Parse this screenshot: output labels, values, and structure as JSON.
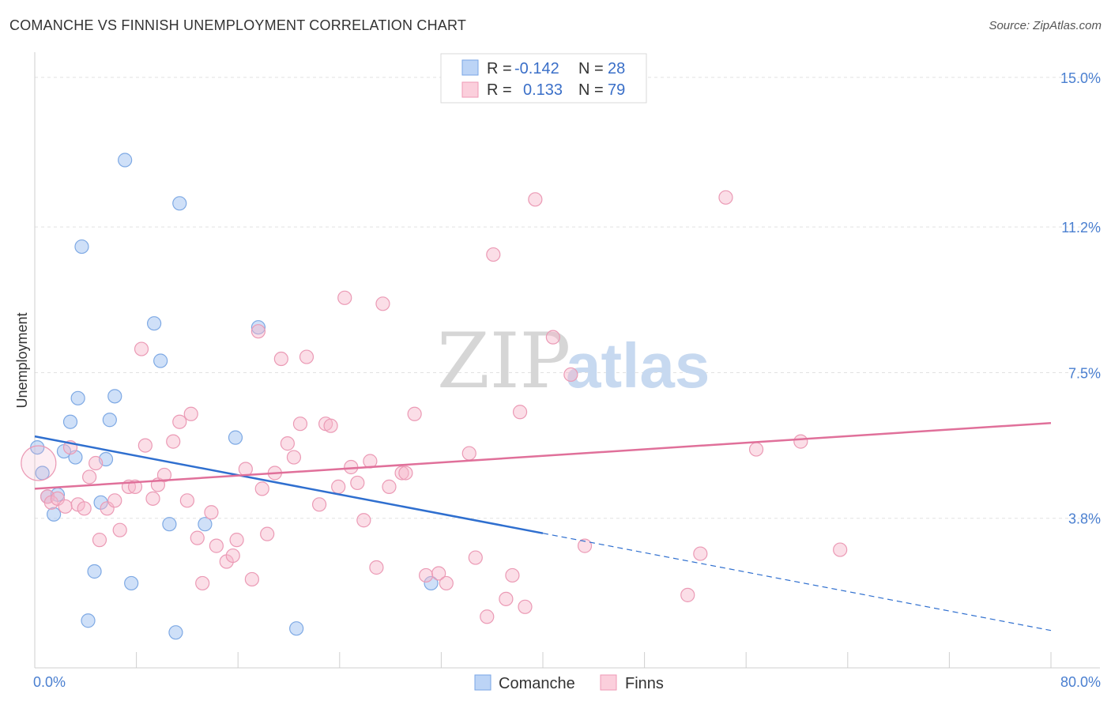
{
  "chart_data": {
    "type": "scatter",
    "title": "COMANCHE VS FINNISH UNEMPLOYMENT CORRELATION CHART",
    "source": "Source: ZipAtlas.com",
    "xlabel": "",
    "ylabel": "Unemployment",
    "xlim": [
      0,
      80
    ],
    "ylim": [
      0,
      15.4
    ],
    "x_tick_labels": {
      "min": "0.0%",
      "max": "80.0%"
    },
    "y_ticks": [
      {
        "value": 3.8,
        "label": "3.8%"
      },
      {
        "value": 7.5,
        "label": "7.5%"
      },
      {
        "value": 11.2,
        "label": "11.2%"
      },
      {
        "value": 15.0,
        "label": "15.0%"
      }
    ],
    "legend": {
      "placement": "top-center",
      "rows": [
        {
          "r_label": "R =",
          "r_value": "-0.142",
          "n_label": "N =",
          "n_value": "28"
        },
        {
          "r_label": "R =",
          "r_value": "0.133",
          "n_label": "N =",
          "n_value": "79"
        }
      ]
    },
    "watermark": {
      "zip": "ZIP",
      "atlas": "atlas"
    },
    "series": [
      {
        "name": "Comanche",
        "color": "#a7c7f2",
        "line_color": "#2f6fcf",
        "trend": {
          "x0": 0,
          "y0": 5.88,
          "x1": 40,
          "y1": 3.42,
          "x_end": 80,
          "y_end": 0.95
        },
        "points": [
          [
            0.2,
            5.6
          ],
          [
            0.6,
            4.95
          ],
          [
            1.0,
            4.35
          ],
          [
            1.5,
            3.9
          ],
          [
            1.8,
            4.4
          ],
          [
            2.3,
            5.5
          ],
          [
            2.8,
            6.25
          ],
          [
            3.2,
            5.35
          ],
          [
            3.4,
            6.85
          ],
          [
            3.7,
            10.7
          ],
          [
            4.2,
            1.2
          ],
          [
            4.7,
            2.45
          ],
          [
            5.2,
            4.2
          ],
          [
            5.6,
            5.3
          ],
          [
            5.9,
            6.3
          ],
          [
            6.3,
            6.9
          ],
          [
            7.1,
            12.9
          ],
          [
            7.6,
            2.15
          ],
          [
            9.4,
            8.75
          ],
          [
            9.9,
            7.8
          ],
          [
            10.6,
            3.65
          ],
          [
            11.1,
            0.9
          ],
          [
            11.4,
            11.8
          ],
          [
            13.4,
            3.65
          ],
          [
            15.8,
            5.85
          ],
          [
            17.6,
            8.65
          ],
          [
            20.6,
            1.0
          ],
          [
            31.2,
            2.15
          ]
        ]
      },
      {
        "name": "Finns",
        "color": "#f7b6ca",
        "line_color": "#e0709a",
        "trend": {
          "x0": 0,
          "y0": 4.55,
          "x1": 80,
          "y1": 6.22
        },
        "points": [
          [
            0.3,
            5.2
          ],
          [
            1.0,
            4.35
          ],
          [
            1.3,
            4.2
          ],
          [
            1.8,
            4.3
          ],
          [
            2.4,
            4.1
          ],
          [
            2.8,
            5.6
          ],
          [
            3.4,
            4.15
          ],
          [
            3.9,
            4.05
          ],
          [
            4.3,
            4.85
          ],
          [
            4.8,
            5.2
          ],
          [
            5.1,
            3.25
          ],
          [
            5.7,
            4.05
          ],
          [
            6.3,
            4.25
          ],
          [
            6.7,
            3.5
          ],
          [
            7.4,
            4.6
          ],
          [
            7.9,
            4.6
          ],
          [
            8.4,
            8.1
          ],
          [
            8.7,
            5.65
          ],
          [
            9.3,
            4.3
          ],
          [
            9.7,
            4.65
          ],
          [
            10.2,
            4.9
          ],
          [
            10.9,
            5.75
          ],
          [
            11.4,
            6.25
          ],
          [
            12.0,
            4.25
          ],
          [
            12.3,
            6.45
          ],
          [
            12.8,
            3.3
          ],
          [
            13.2,
            2.15
          ],
          [
            13.9,
            3.95
          ],
          [
            14.3,
            3.1
          ],
          [
            15.1,
            2.7
          ],
          [
            15.6,
            2.85
          ],
          [
            15.9,
            3.25
          ],
          [
            16.6,
            5.05
          ],
          [
            17.1,
            2.25
          ],
          [
            17.6,
            8.55
          ],
          [
            17.9,
            4.55
          ],
          [
            18.3,
            3.4
          ],
          [
            18.9,
            4.95
          ],
          [
            19.4,
            7.85
          ],
          [
            19.9,
            5.7
          ],
          [
            20.4,
            5.35
          ],
          [
            20.9,
            6.2
          ],
          [
            21.4,
            7.9
          ],
          [
            22.4,
            4.15
          ],
          [
            22.9,
            6.2
          ],
          [
            23.3,
            6.15
          ],
          [
            23.9,
            4.6
          ],
          [
            24.4,
            9.4
          ],
          [
            24.9,
            5.1
          ],
          [
            25.4,
            4.7
          ],
          [
            25.9,
            3.75
          ],
          [
            26.4,
            5.25
          ],
          [
            26.9,
            2.55
          ],
          [
            27.4,
            9.25
          ],
          [
            27.9,
            4.6
          ],
          [
            28.9,
            4.95
          ],
          [
            29.2,
            4.95
          ],
          [
            29.9,
            6.45
          ],
          [
            30.8,
            2.35
          ],
          [
            31.8,
            2.4
          ],
          [
            32.4,
            2.15
          ],
          [
            34.2,
            5.45
          ],
          [
            34.7,
            2.8
          ],
          [
            35.6,
            1.3
          ],
          [
            36.1,
            10.5
          ],
          [
            37.1,
            1.75
          ],
          [
            37.6,
            2.35
          ],
          [
            38.2,
            6.5
          ],
          [
            38.6,
            1.55
          ],
          [
            39.4,
            11.9
          ],
          [
            40.8,
            8.4
          ],
          [
            42.2,
            7.45
          ],
          [
            43.3,
            3.1
          ],
          [
            51.4,
            1.85
          ],
          [
            52.4,
            2.9
          ],
          [
            54.4,
            11.95
          ],
          [
            56.8,
            5.55
          ],
          [
            60.3,
            5.75
          ],
          [
            63.4,
            3.0
          ]
        ]
      }
    ]
  }
}
